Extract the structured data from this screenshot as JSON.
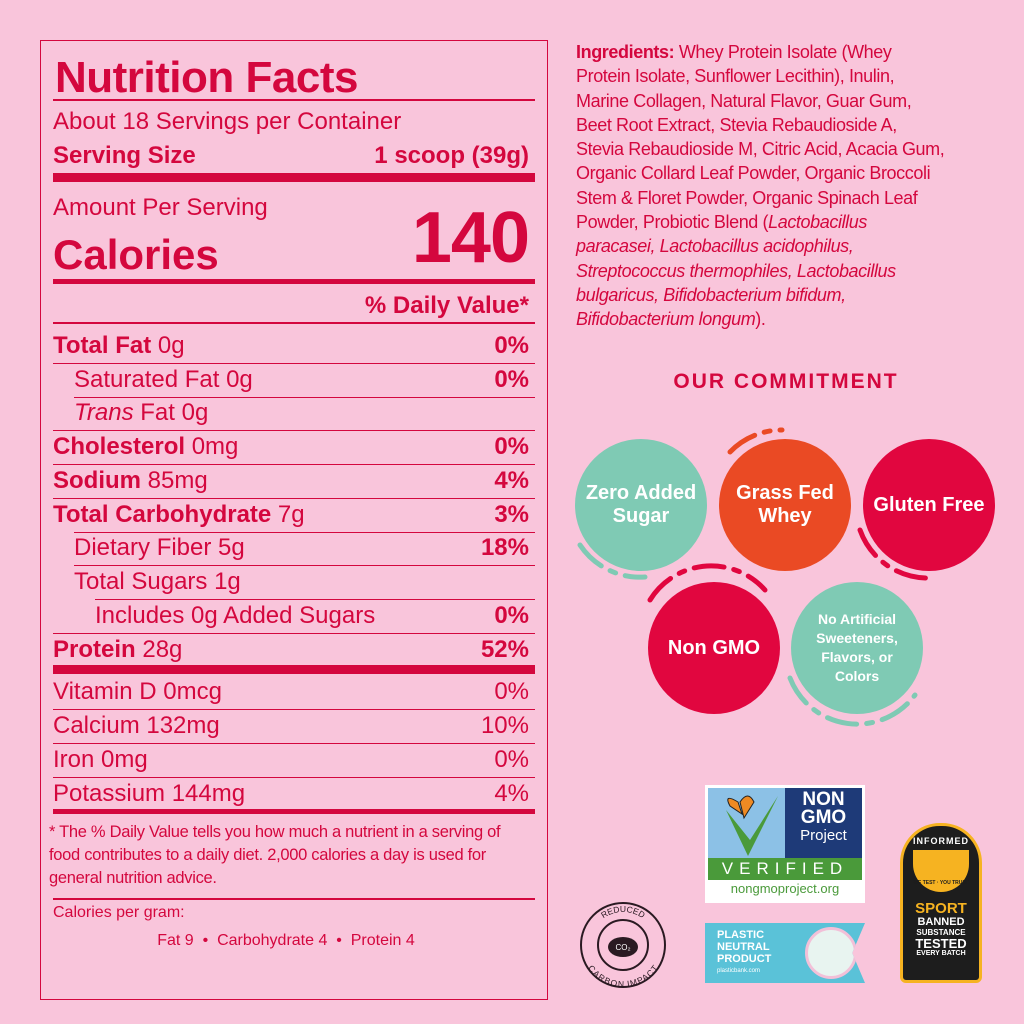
{
  "nutrition": {
    "title": "Nutrition Facts",
    "servings": "About 18 Servings per Container",
    "serving_size_label": "Serving Size",
    "serving_size_value": "1 scoop (39g)",
    "amount_per_serving": "Amount Per Serving",
    "calories_label": "Calories",
    "calories_value": "140",
    "dv_header": "% Daily Value*",
    "rows": [
      {
        "label": "Total Fat",
        "amount": " 0g",
        "dv": "0%"
      },
      {
        "label": "Saturated Fat 0g",
        "amount": "",
        "dv": "0%"
      },
      {
        "label": "Trans",
        "amount": " Fat 0g",
        "dv": ""
      },
      {
        "label": "Cholesterol",
        "amount": " 0mg",
        "dv": "0%"
      },
      {
        "label": "Sodium",
        "amount": " 85mg",
        "dv": "4%"
      },
      {
        "label": "Total Carbohydrate",
        "amount": " 7g",
        "dv": "3%"
      },
      {
        "label": "Dietary Fiber 5g",
        "amount": "",
        "dv": "18%"
      },
      {
        "label": "Total Sugars 1g",
        "amount": "",
        "dv": ""
      },
      {
        "label": "Includes 0g Added Sugars",
        "amount": "",
        "dv": "0%"
      },
      {
        "label": "Protein",
        "amount": " 28g",
        "dv": "52%"
      }
    ],
    "vitamins": [
      {
        "label": "Vitamin D 0mcg",
        "dv": "0%"
      },
      {
        "label": "Calcium 132mg",
        "dv": "10%"
      },
      {
        "label": "Iron 0mg",
        "dv": "0%"
      },
      {
        "label": "Potassium 144mg",
        "dv": "4%"
      }
    ],
    "footnote": "* The % Daily Value tells you how much a nutrient in a serving of food contributes to a daily diet. 2,000 calories a day is used for general nutrition advice.",
    "cal_per_gram_label": "Calories per gram:",
    "cal_per_gram": "Fat 9  •  Carbohydrate 4  •  Protein 4"
  },
  "ingredients": {
    "label": "Ingredients:",
    "lines": [
      " Whey Protein Isolate (Whey",
      "Protein Isolate, Sunflower Lecithin), Inulin,",
      "Marine Collagen, Natural Flavor, Guar Gum,",
      "Beet Root Extract, Stevia Rebaudioside A,",
      "Stevia Rebaudioside M, Citric Acid, Acacia Gum,",
      "Organic Collard Leaf Powder, Organic Broccoli",
      "Stem & Floret Powder, Organic Spinach Leaf",
      "Powder, Probiotic Blend (",
      "Lactobacillus",
      "paracasei, Lactobacillus acidophilus,",
      "Streptococcus thermophiles, Lactobacillus",
      "bulgaricus, Bifidobacterium bifidum,",
      "Bifidobacterium longum",
      ")."
    ]
  },
  "commitment": {
    "title": "OUR COMMITMENT",
    "badges": [
      "Zero Added Sugar",
      "Grass Fed Whey",
      "Gluten Free",
      "Non GMO",
      "No Artificial Sweeteners, Flavors, or Colors"
    ]
  },
  "logos": {
    "nongmo": {
      "line1": "NON",
      "line2": "GMO",
      "line3": "Project",
      "verified": "VERIFIED",
      "url": "nongmoproject.org"
    },
    "plastic": {
      "line1": "PLASTIC",
      "line2": "NEUTRAL",
      "line3": "PRODUCT",
      "url": "plasticbank.com"
    },
    "carbon": {
      "top": "REDUCED",
      "bottom": "CARBON IMPACT",
      "co2": "CO₂"
    },
    "informed": {
      "top": "INFORMED",
      "tag": "WE TEST · YOU TRUST",
      "sport": "SPORT",
      "l1": "BANNED",
      "l2": "SUBSTANCE",
      "l3": "TESTED",
      "l4": "EVERY BATCH"
    }
  },
  "colors": {
    "background": "#f9c5db",
    "primary": "#d4073e",
    "teal": "#7fcab4",
    "orange": "#ea4a24",
    "red": "#e1063f"
  }
}
